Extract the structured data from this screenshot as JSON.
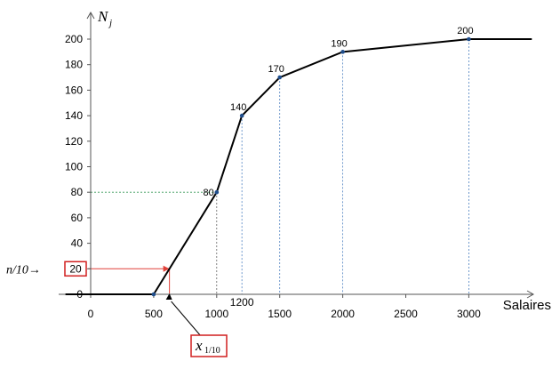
{
  "chart_data": {
    "type": "line",
    "title": "",
    "xlabel": "Salaires",
    "ylabel": "N",
    "ylabel_sub": "j",
    "xlim": [
      -200,
      3500
    ],
    "ylim": [
      0,
      210
    ],
    "x_ticks": [
      0,
      500,
      1000,
      1500,
      2000,
      2500,
      3000
    ],
    "extra_x_tick": {
      "value": 1200,
      "label": "1200"
    },
    "y_ticks": [
      0,
      20,
      40,
      60,
      80,
      100,
      120,
      140,
      160,
      180,
      200
    ],
    "grid": false,
    "series": [
      {
        "x": [
          -200,
          500,
          1000,
          1200,
          1500,
          2000,
          3000,
          3500
        ],
        "y": [
          0,
          0,
          80,
          140,
          170,
          190,
          200,
          200
        ]
      }
    ],
    "points": [
      {
        "x": 500,
        "y": 0,
        "label": ""
      },
      {
        "x": 1000,
        "y": 80,
        "label": "80"
      },
      {
        "x": 1200,
        "y": 140,
        "label": "140"
      },
      {
        "x": 1500,
        "y": 170,
        "label": "170"
      },
      {
        "x": 2000,
        "y": 190,
        "label": "190"
      },
      {
        "x": 3000,
        "y": 200,
        "label": "200"
      }
    ],
    "annotations": {
      "n_over_10_label": "n/10→",
      "highlight_y_label": "20",
      "highlight_y_value": 20,
      "decile_x_value": 625,
      "decile_label_main": "x",
      "decile_label_sub": "1/10"
    },
    "colors": {
      "curve": "#000000",
      "points": "#1f4e8c",
      "guide_blue": "#4a7ebf",
      "guide_green": "#3a9a5a",
      "guide_red": "#e0413a",
      "box_red": "#d11f1f"
    }
  }
}
